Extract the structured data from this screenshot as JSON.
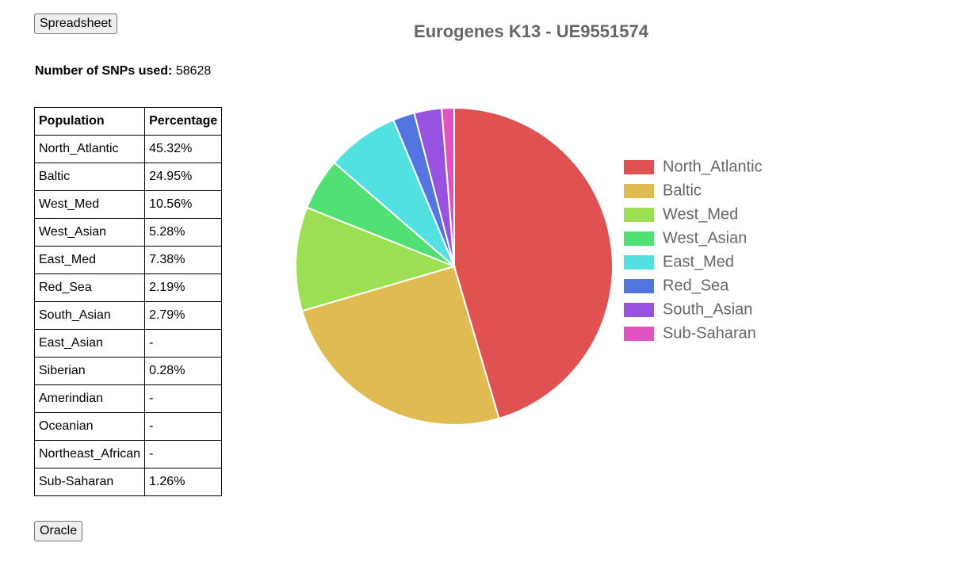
{
  "buttons": {
    "top": "Spreadsheet",
    "bottom": "Oracle"
  },
  "snps": {
    "label": "Number of SNPs used:",
    "value": "58628"
  },
  "table": {
    "header": [
      "Population",
      "Percentage"
    ],
    "rows": [
      [
        "North_Atlantic",
        "45.32%"
      ],
      [
        "Baltic",
        "24.95%"
      ],
      [
        "West_Med",
        "10.56%"
      ],
      [
        "West_Asian",
        "5.28%"
      ],
      [
        "East_Med",
        "7.38%"
      ],
      [
        "Red_Sea",
        "2.19%"
      ],
      [
        "South_Asian",
        "2.79%"
      ],
      [
        "East_Asian",
        "-"
      ],
      [
        "Siberian",
        "0.28%"
      ],
      [
        "Amerindian",
        "-"
      ],
      [
        "Oceanian",
        "-"
      ],
      [
        "Northeast_African",
        "-"
      ],
      [
        "Sub-Saharan",
        "1.26%"
      ]
    ]
  },
  "chart_data": {
    "type": "pie",
    "title": "Eurogenes K13 - UE9551574",
    "categories": [
      "North_Atlantic",
      "Baltic",
      "West_Med",
      "West_Asian",
      "East_Med",
      "Red_Sea",
      "South_Asian",
      "Sub-Saharan"
    ],
    "values": [
      45.32,
      24.95,
      10.56,
      5.28,
      7.38,
      2.19,
      2.79,
      1.26
    ],
    "colors": [
      "#e05252",
      "#e0bb52",
      "#9ae052",
      "#52e075",
      "#52e0e0",
      "#5275e0",
      "#9752e0",
      "#e052bf"
    ],
    "legend": "right"
  }
}
